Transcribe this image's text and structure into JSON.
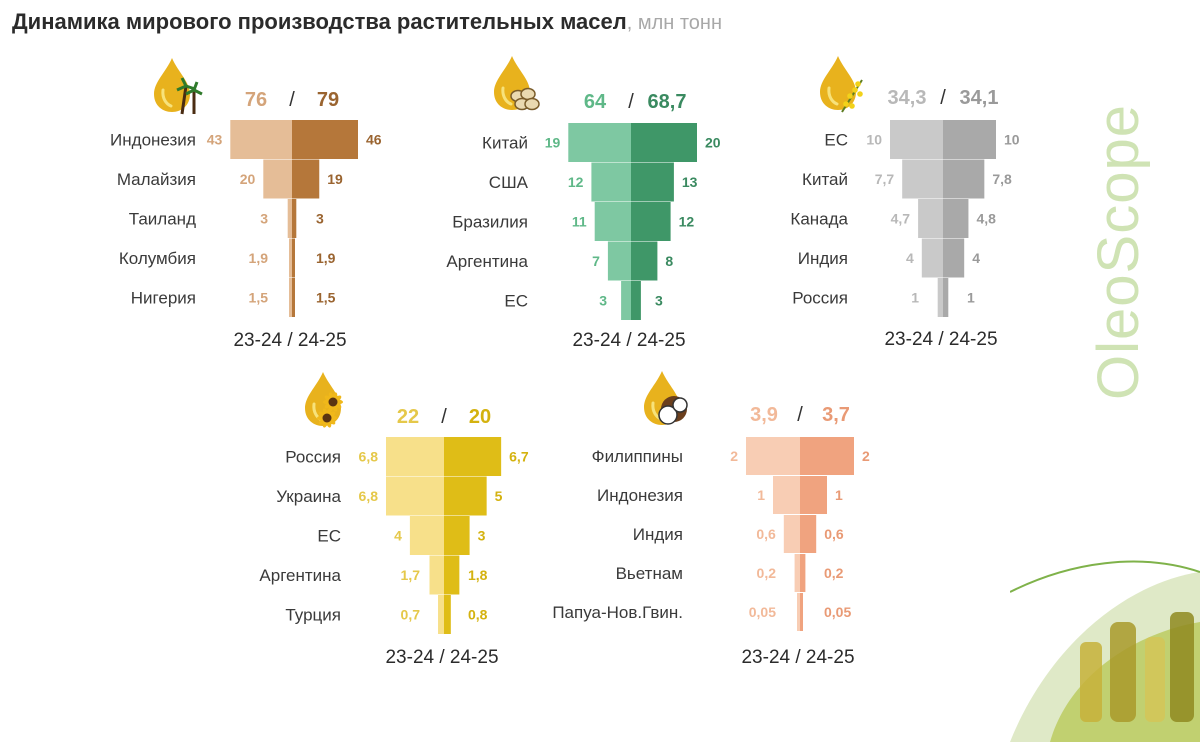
{
  "header": {
    "title": "Динамика мирового производства растительных масел",
    "unit": ", млн тонн"
  },
  "brand": "OleoScope",
  "chart_data": [
    {
      "type": "bar",
      "icon": "palm-oil-drop-icon",
      "totals": [
        "76",
        "79"
      ],
      "colors": {
        "left": "#e5bd97",
        "right": "#b5773a",
        "leftText": "#d4a47a",
        "rightText": "#9a6430"
      },
      "categories": [
        "Индонезия",
        "Малайзия",
        "Таиланд",
        "Колумбия",
        "Нигерия"
      ],
      "series": [
        {
          "name": "23-24",
          "values": [
            43,
            20,
            3,
            1.9,
            1.5
          ],
          "labels": [
            "43",
            "20",
            "3",
            "1,9",
            "1,5"
          ]
        },
        {
          "name": "24-25",
          "values": [
            46,
            19,
            3,
            1.9,
            1.5
          ],
          "labels": [
            "46",
            "19",
            "3",
            "1,9",
            "1,5"
          ]
        }
      ],
      "period_label": "23-24 / 24-25"
    },
    {
      "type": "bar",
      "icon": "soybean-oil-drop-icon",
      "totals": [
        "64",
        "68,7"
      ],
      "colors": {
        "left": "#7ec8a2",
        "right": "#3f9768",
        "leftText": "#5fb888",
        "rightText": "#3a8a60"
      },
      "categories": [
        "Китай",
        "США",
        "Бразилия",
        "Аргентина",
        "ЕС"
      ],
      "series": [
        {
          "name": "23-24",
          "values": [
            19,
            12,
            11,
            7,
            3
          ],
          "labels": [
            "19",
            "12",
            "11",
            "7",
            "3"
          ]
        },
        {
          "name": "24-25",
          "values": [
            20,
            13,
            12,
            8,
            3
          ],
          "labels": [
            "20",
            "13",
            "12",
            "8",
            "3"
          ]
        }
      ],
      "period_label": "23-24 / 24-25"
    },
    {
      "type": "bar",
      "icon": "rapeseed-oil-drop-icon",
      "totals": [
        "34,3",
        "34,1"
      ],
      "colors": {
        "left": "#c9c9c9",
        "right": "#a9a9a9",
        "leftText": "#b8b8b8",
        "rightText": "#9a9a9a"
      },
      "categories": [
        "ЕС",
        "Китай",
        "Канада",
        "Индия",
        "Россия"
      ],
      "series": [
        {
          "name": "23-24",
          "values": [
            10,
            7.7,
            4.7,
            4,
            1
          ],
          "labels": [
            "10",
            "7,7",
            "4,7",
            "4",
            "1"
          ]
        },
        {
          "name": "24-25",
          "values": [
            10,
            7.8,
            4.8,
            4,
            1
          ],
          "labels": [
            "10",
            "7,8",
            "4,8",
            "4",
            "1"
          ]
        }
      ],
      "period_label": "23-24 / 24-25"
    },
    {
      "type": "bar",
      "icon": "sunflower-oil-drop-icon",
      "totals": [
        "22",
        "20"
      ],
      "colors": {
        "left": "#f7e08a",
        "right": "#dfbd17",
        "leftText": "#e5c84a",
        "rightText": "#d4b20f"
      },
      "categories": [
        "Россия",
        "Украина",
        "ЕС",
        "Аргентина",
        "Турция"
      ],
      "series": [
        {
          "name": "23-24",
          "values": [
            6.8,
            6.8,
            4,
            1.7,
            0.7
          ],
          "labels": [
            "6,8",
            "6,8",
            "4",
            "1,7",
            "0,7"
          ]
        },
        {
          "name": "24-25",
          "values": [
            6.7,
            5,
            3,
            1.8,
            0.8
          ],
          "labels": [
            "6,7",
            "5",
            "3",
            "1,8",
            "0,8"
          ]
        }
      ],
      "period_label": "23-24 / 24-25"
    },
    {
      "type": "bar",
      "icon": "coconut-oil-drop-icon",
      "totals": [
        "3,9",
        "3,7"
      ],
      "colors": {
        "left": "#f8cdb4",
        "right": "#f0a37f",
        "leftText": "#f2b999",
        "rightText": "#e99a75"
      },
      "categories": [
        "Филиппины",
        "Индонезия",
        "Индия",
        "Вьетнам",
        "Папуа-Нов.Гвин."
      ],
      "series": [
        {
          "name": "23-24",
          "values": [
            2,
            1,
            0.6,
            0.2,
            0.05
          ],
          "labels": [
            "2",
            "1",
            "0,6",
            "0,2",
            "0,05"
          ]
        },
        {
          "name": "24-25",
          "values": [
            2,
            1,
            0.6,
            0.2,
            0.05
          ],
          "labels": [
            "2",
            "1",
            "0,6",
            "0,2",
            "0,05"
          ]
        }
      ],
      "period_label": "23-24 / 24-25"
    }
  ]
}
